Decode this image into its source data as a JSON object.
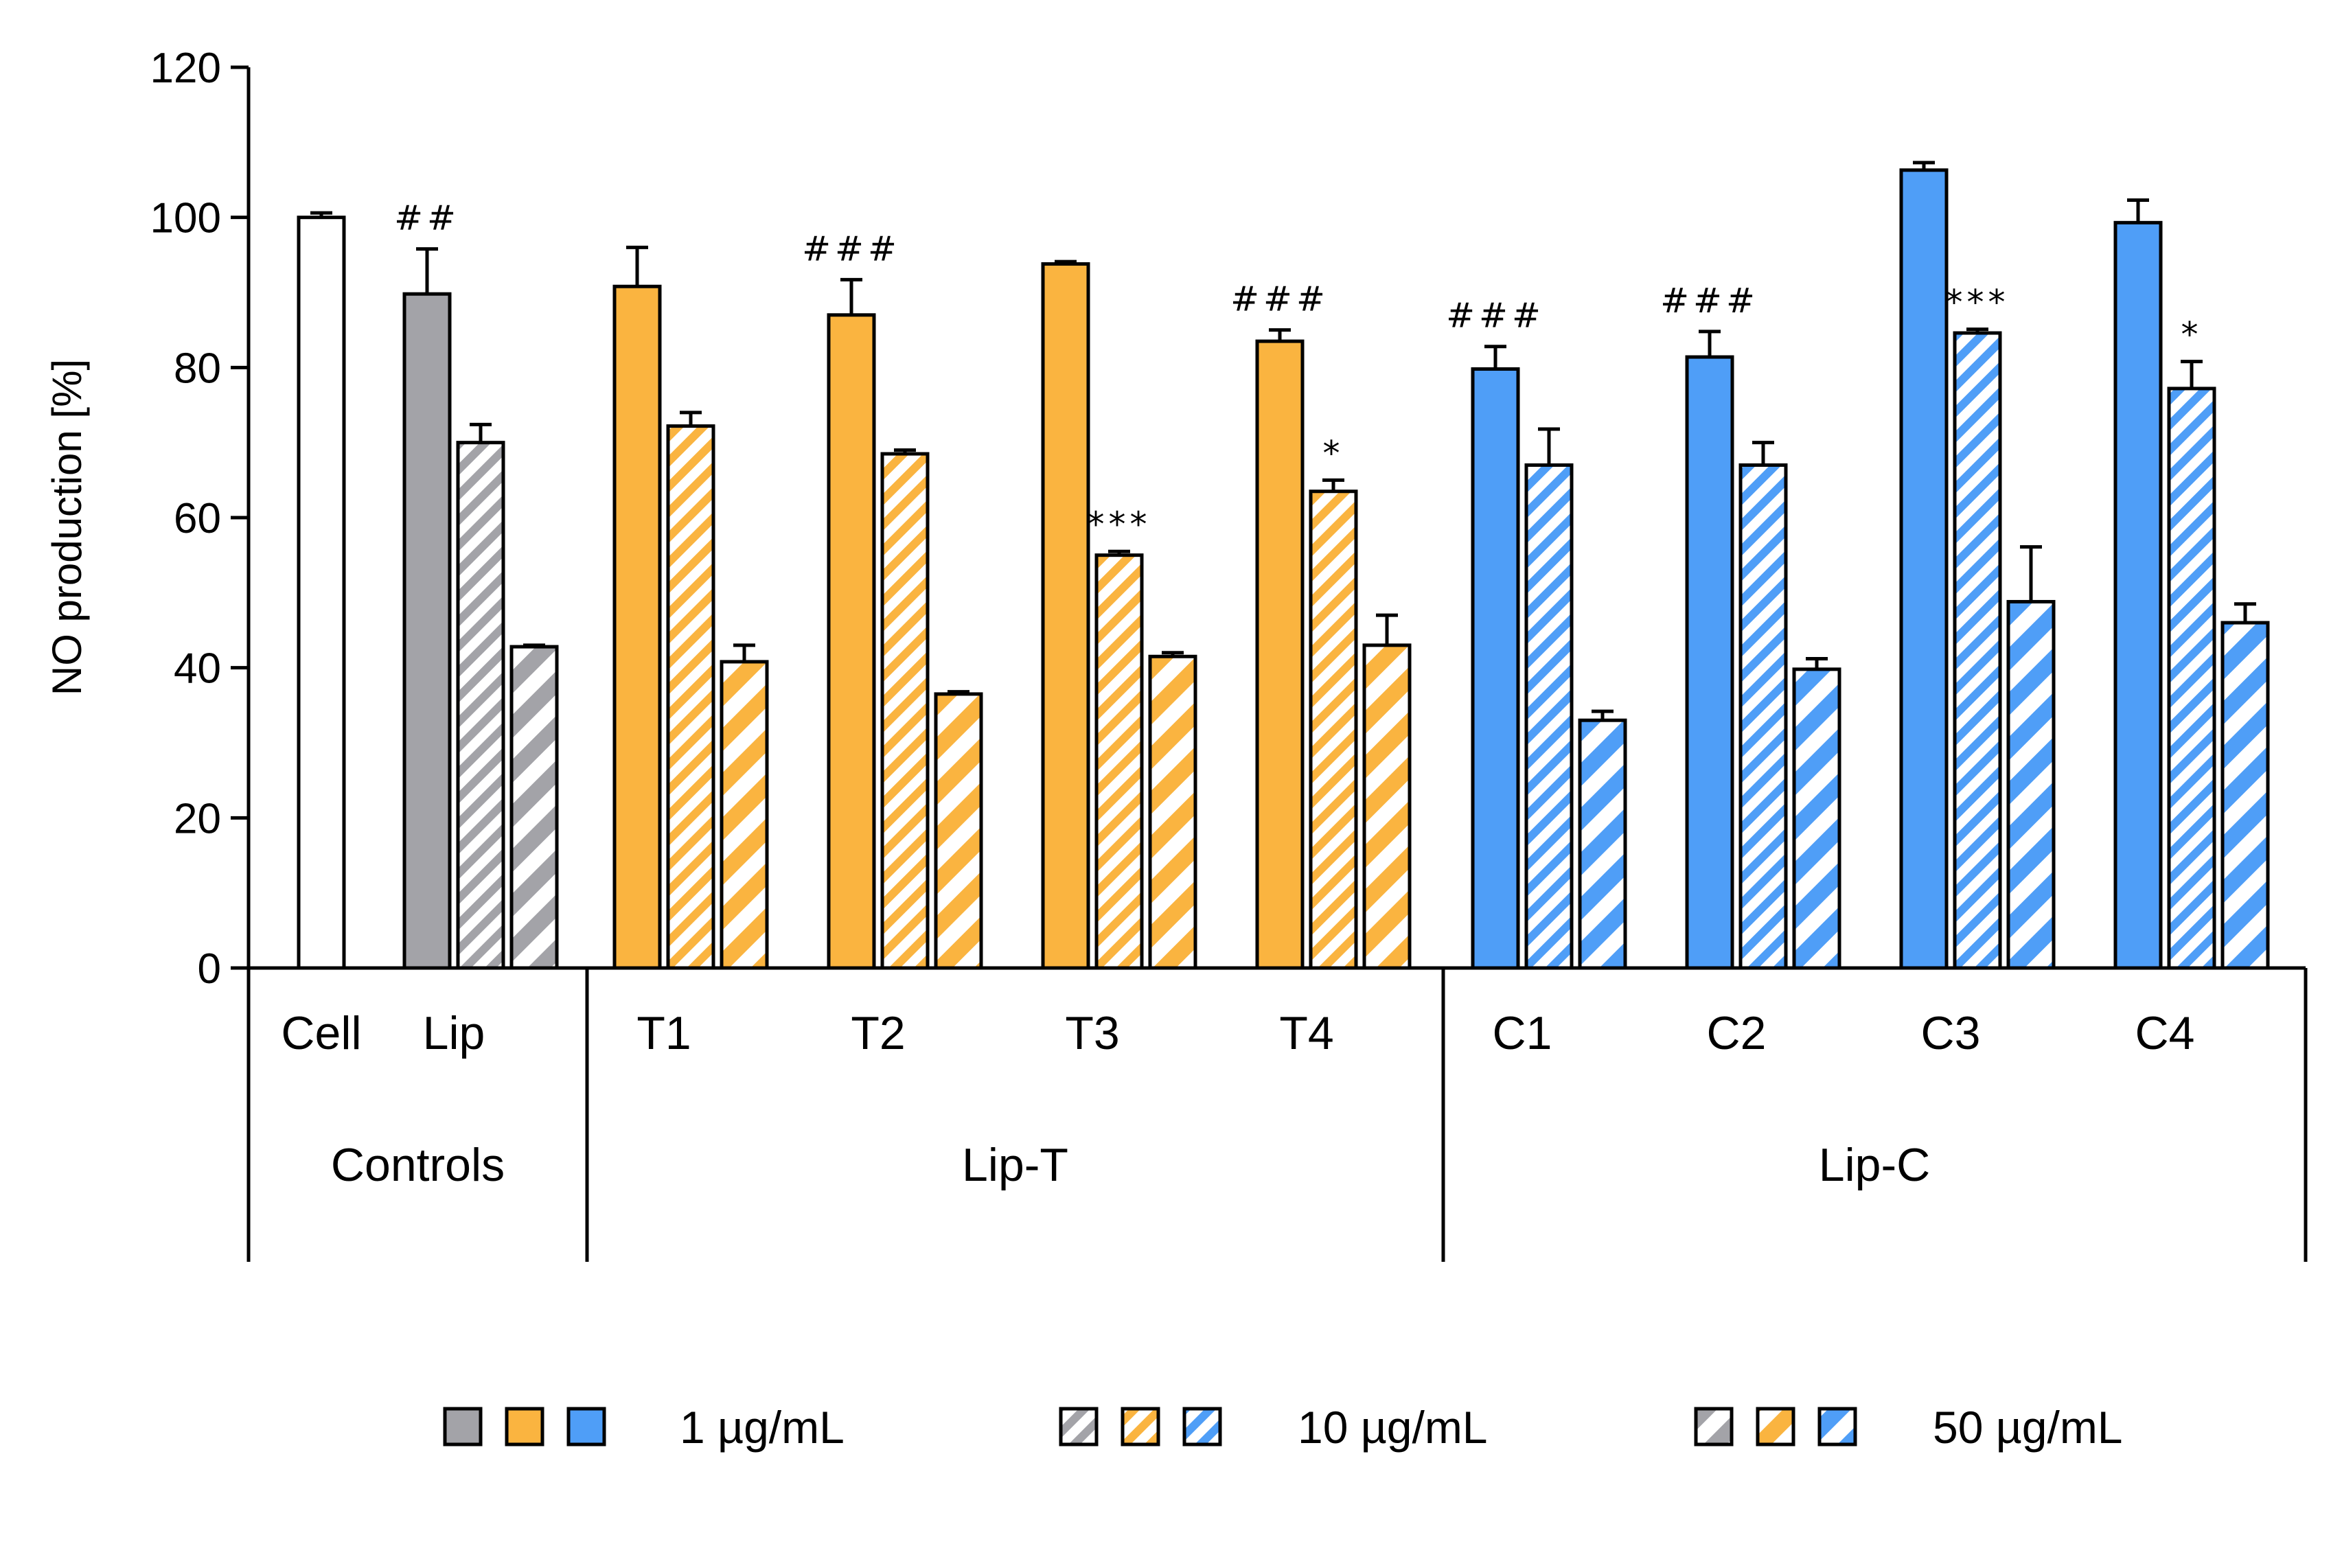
{
  "chart_data": {
    "type": "bar",
    "ylabel": "NO production [%]",
    "ylim": [
      0,
      120
    ],
    "yticks": [
      0,
      20,
      40,
      60,
      80,
      100,
      120
    ],
    "colors": {
      "white": "#ffffff",
      "gray": "#a3a3a8",
      "orange": "#fab440",
      "blue": "#4f9ef7",
      "stroke": "#000000"
    },
    "groups": [
      {
        "name": "Controls",
        "categories": [
          {
            "label": "Cell",
            "bars": [
              {
                "value": 100,
                "error": 0.6,
                "dose": "1",
                "color": "white",
                "annotation": ""
              }
            ]
          },
          {
            "label": "Lip",
            "bars": [
              {
                "value": 89.8,
                "error": 6.0,
                "dose": "1",
                "color": "gray",
                "annotation": "##"
              },
              {
                "value": 70.0,
                "error": 2.4,
                "dose": "10",
                "color": "gray",
                "annotation": ""
              },
              {
                "value": 42.8,
                "error": 0.2,
                "dose": "50",
                "color": "gray",
                "annotation": ""
              }
            ]
          }
        ]
      },
      {
        "name": "Lip-T",
        "categories": [
          {
            "label": "T1",
            "bars": [
              {
                "value": 90.8,
                "error": 5.2,
                "dose": "1",
                "color": "orange",
                "annotation": ""
              },
              {
                "value": 72.2,
                "error": 1.8,
                "dose": "10",
                "color": "orange",
                "annotation": ""
              },
              {
                "value": 40.8,
                "error": 2.2,
                "dose": "50",
                "color": "orange",
                "annotation": ""
              }
            ]
          },
          {
            "label": "T2",
            "bars": [
              {
                "value": 87.0,
                "error": 4.7,
                "dose": "1",
                "color": "orange",
                "annotation": "###"
              },
              {
                "value": 68.5,
                "error": 0.5,
                "dose": "10",
                "color": "orange",
                "annotation": ""
              },
              {
                "value": 36.5,
                "error": 0.3,
                "dose": "50",
                "color": "orange",
                "annotation": ""
              }
            ]
          },
          {
            "label": "T3",
            "bars": [
              {
                "value": 93.8,
                "error": 0.3,
                "dose": "1",
                "color": "orange",
                "annotation": ""
              },
              {
                "value": 55.0,
                "error": 0.5,
                "dose": "10",
                "color": "orange",
                "annotation": "***"
              },
              {
                "value": 41.5,
                "error": 0.5,
                "dose": "50",
                "color": "orange",
                "annotation": ""
              }
            ]
          },
          {
            "label": "T4",
            "bars": [
              {
                "value": 83.5,
                "error": 1.5,
                "dose": "1",
                "color": "orange",
                "annotation": "###"
              },
              {
                "value": 63.5,
                "error": 1.5,
                "dose": "10",
                "color": "orange",
                "annotation": "*"
              },
              {
                "value": 43.0,
                "error": 4.0,
                "dose": "50",
                "color": "orange",
                "annotation": ""
              }
            ]
          }
        ]
      },
      {
        "name": "Lip-C",
        "categories": [
          {
            "label": "C1",
            "bars": [
              {
                "value": 79.8,
                "error": 3.0,
                "dose": "1",
                "color": "blue",
                "annotation": "###"
              },
              {
                "value": 67.0,
                "error": 4.8,
                "dose": "10",
                "color": "blue",
                "annotation": ""
              },
              {
                "value": 33.0,
                "error": 1.2,
                "dose": "50",
                "color": "blue",
                "annotation": ""
              }
            ]
          },
          {
            "label": "C2",
            "bars": [
              {
                "value": 81.4,
                "error": 3.4,
                "dose": "1",
                "color": "blue",
                "annotation": "###"
              },
              {
                "value": 67.0,
                "error": 3.0,
                "dose": "10",
                "color": "blue",
                "annotation": ""
              },
              {
                "value": 39.8,
                "error": 1.4,
                "dose": "50",
                "color": "blue",
                "annotation": ""
              }
            ]
          },
          {
            "label": "C3",
            "bars": [
              {
                "value": 106.3,
                "error": 1.0,
                "dose": "1",
                "color": "blue",
                "annotation": ""
              },
              {
                "value": 84.6,
                "error": 0.5,
                "dose": "10",
                "color": "blue",
                "annotation": "***"
              },
              {
                "value": 48.8,
                "error": 7.3,
                "dose": "50",
                "color": "blue",
                "annotation": ""
              }
            ]
          },
          {
            "label": "C4",
            "bars": [
              {
                "value": 99.3,
                "error": 3.0,
                "dose": "1",
                "color": "blue",
                "annotation": ""
              },
              {
                "value": 77.2,
                "error": 3.6,
                "dose": "10",
                "color": "blue",
                "annotation": "*"
              },
              {
                "value": 46.0,
                "error": 2.5,
                "dose": "50",
                "color": "blue",
                "annotation": ""
              }
            ]
          }
        ]
      }
    ],
    "legend": {
      "position": "bottom",
      "entries": [
        {
          "label": "1 µg/mL",
          "dose": "1",
          "swatches": [
            "gray",
            "orange",
            "blue"
          ]
        },
        {
          "label": "10 µg/mL",
          "dose": "10",
          "swatches": [
            "gray",
            "orange",
            "blue"
          ]
        },
        {
          "label": "50 µg/mL",
          "dose": "50",
          "swatches": [
            "gray",
            "orange",
            "blue"
          ]
        }
      ]
    }
  }
}
